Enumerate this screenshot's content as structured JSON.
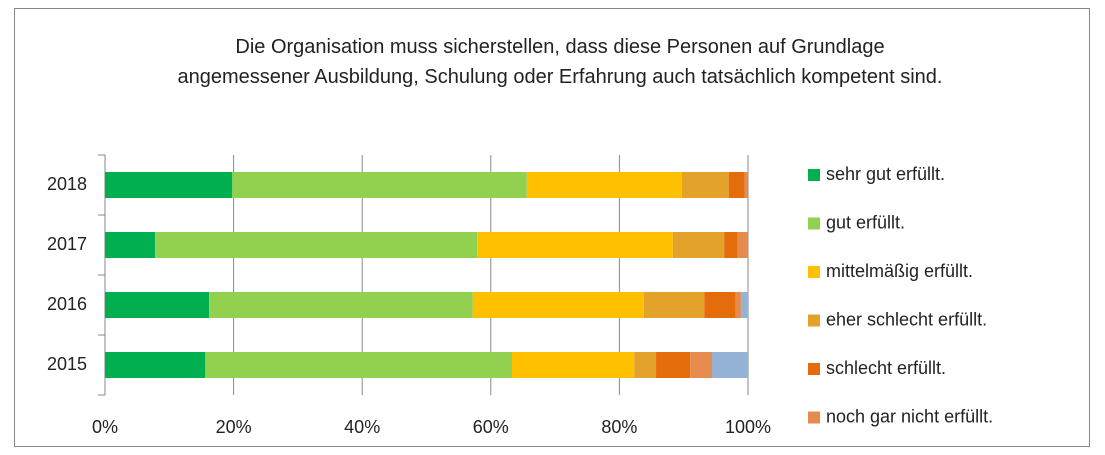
{
  "chart_data": {
    "type": "stacked_barh",
    "title": "Die Organisation muss sicherstellen, dass diese Personen auf Grundlage angemessener Ausbildung, Schulung oder Erfahrung auch tatsächlich kompetent sind.",
    "categories": [
      "2018",
      "2017",
      "2016",
      "2015"
    ],
    "series": [
      {
        "name": "sehr gut erfüllt.",
        "color": "#00b050",
        "values": [
          19.8,
          7.8,
          16.2,
          15.6
        ]
      },
      {
        "name": "gut erfüllt.",
        "color": "#92d050",
        "values": [
          45.8,
          50.1,
          41.0,
          47.7
        ]
      },
      {
        "name": "mittelmäßig erfüllt.",
        "color": "#ffc000",
        "values": [
          24.1,
          30.4,
          26.6,
          19.0
        ]
      },
      {
        "name": "eher schlecht erfüllt.",
        "color": "#e3a32b",
        "values": [
          7.3,
          8.0,
          9.4,
          3.4
        ]
      },
      {
        "name": "schlecht erfüllt.",
        "color": "#e46c0a",
        "values": [
          2.5,
          2.1,
          4.9,
          5.3
        ]
      },
      {
        "name": "noch gar nicht erfüllt.",
        "color": "#e58b4c",
        "values": [
          0.5,
          1.6,
          0.8,
          3.4
        ]
      },
      {
        "color": "#95b3d7",
        "values": [
          0,
          0,
          1.1,
          5.6
        ]
      }
    ],
    "xlim": [
      0,
      100
    ],
    "xticks": [
      {
        "value": 0,
        "label": "0%"
      },
      {
        "value": 20,
        "label": "20%"
      },
      {
        "value": 40,
        "label": "40%"
      },
      {
        "value": 60,
        "label": "60%"
      },
      {
        "value": 80,
        "label": "80%"
      },
      {
        "value": 100,
        "label": "100%"
      }
    ],
    "grid": true,
    "legend": "right"
  }
}
